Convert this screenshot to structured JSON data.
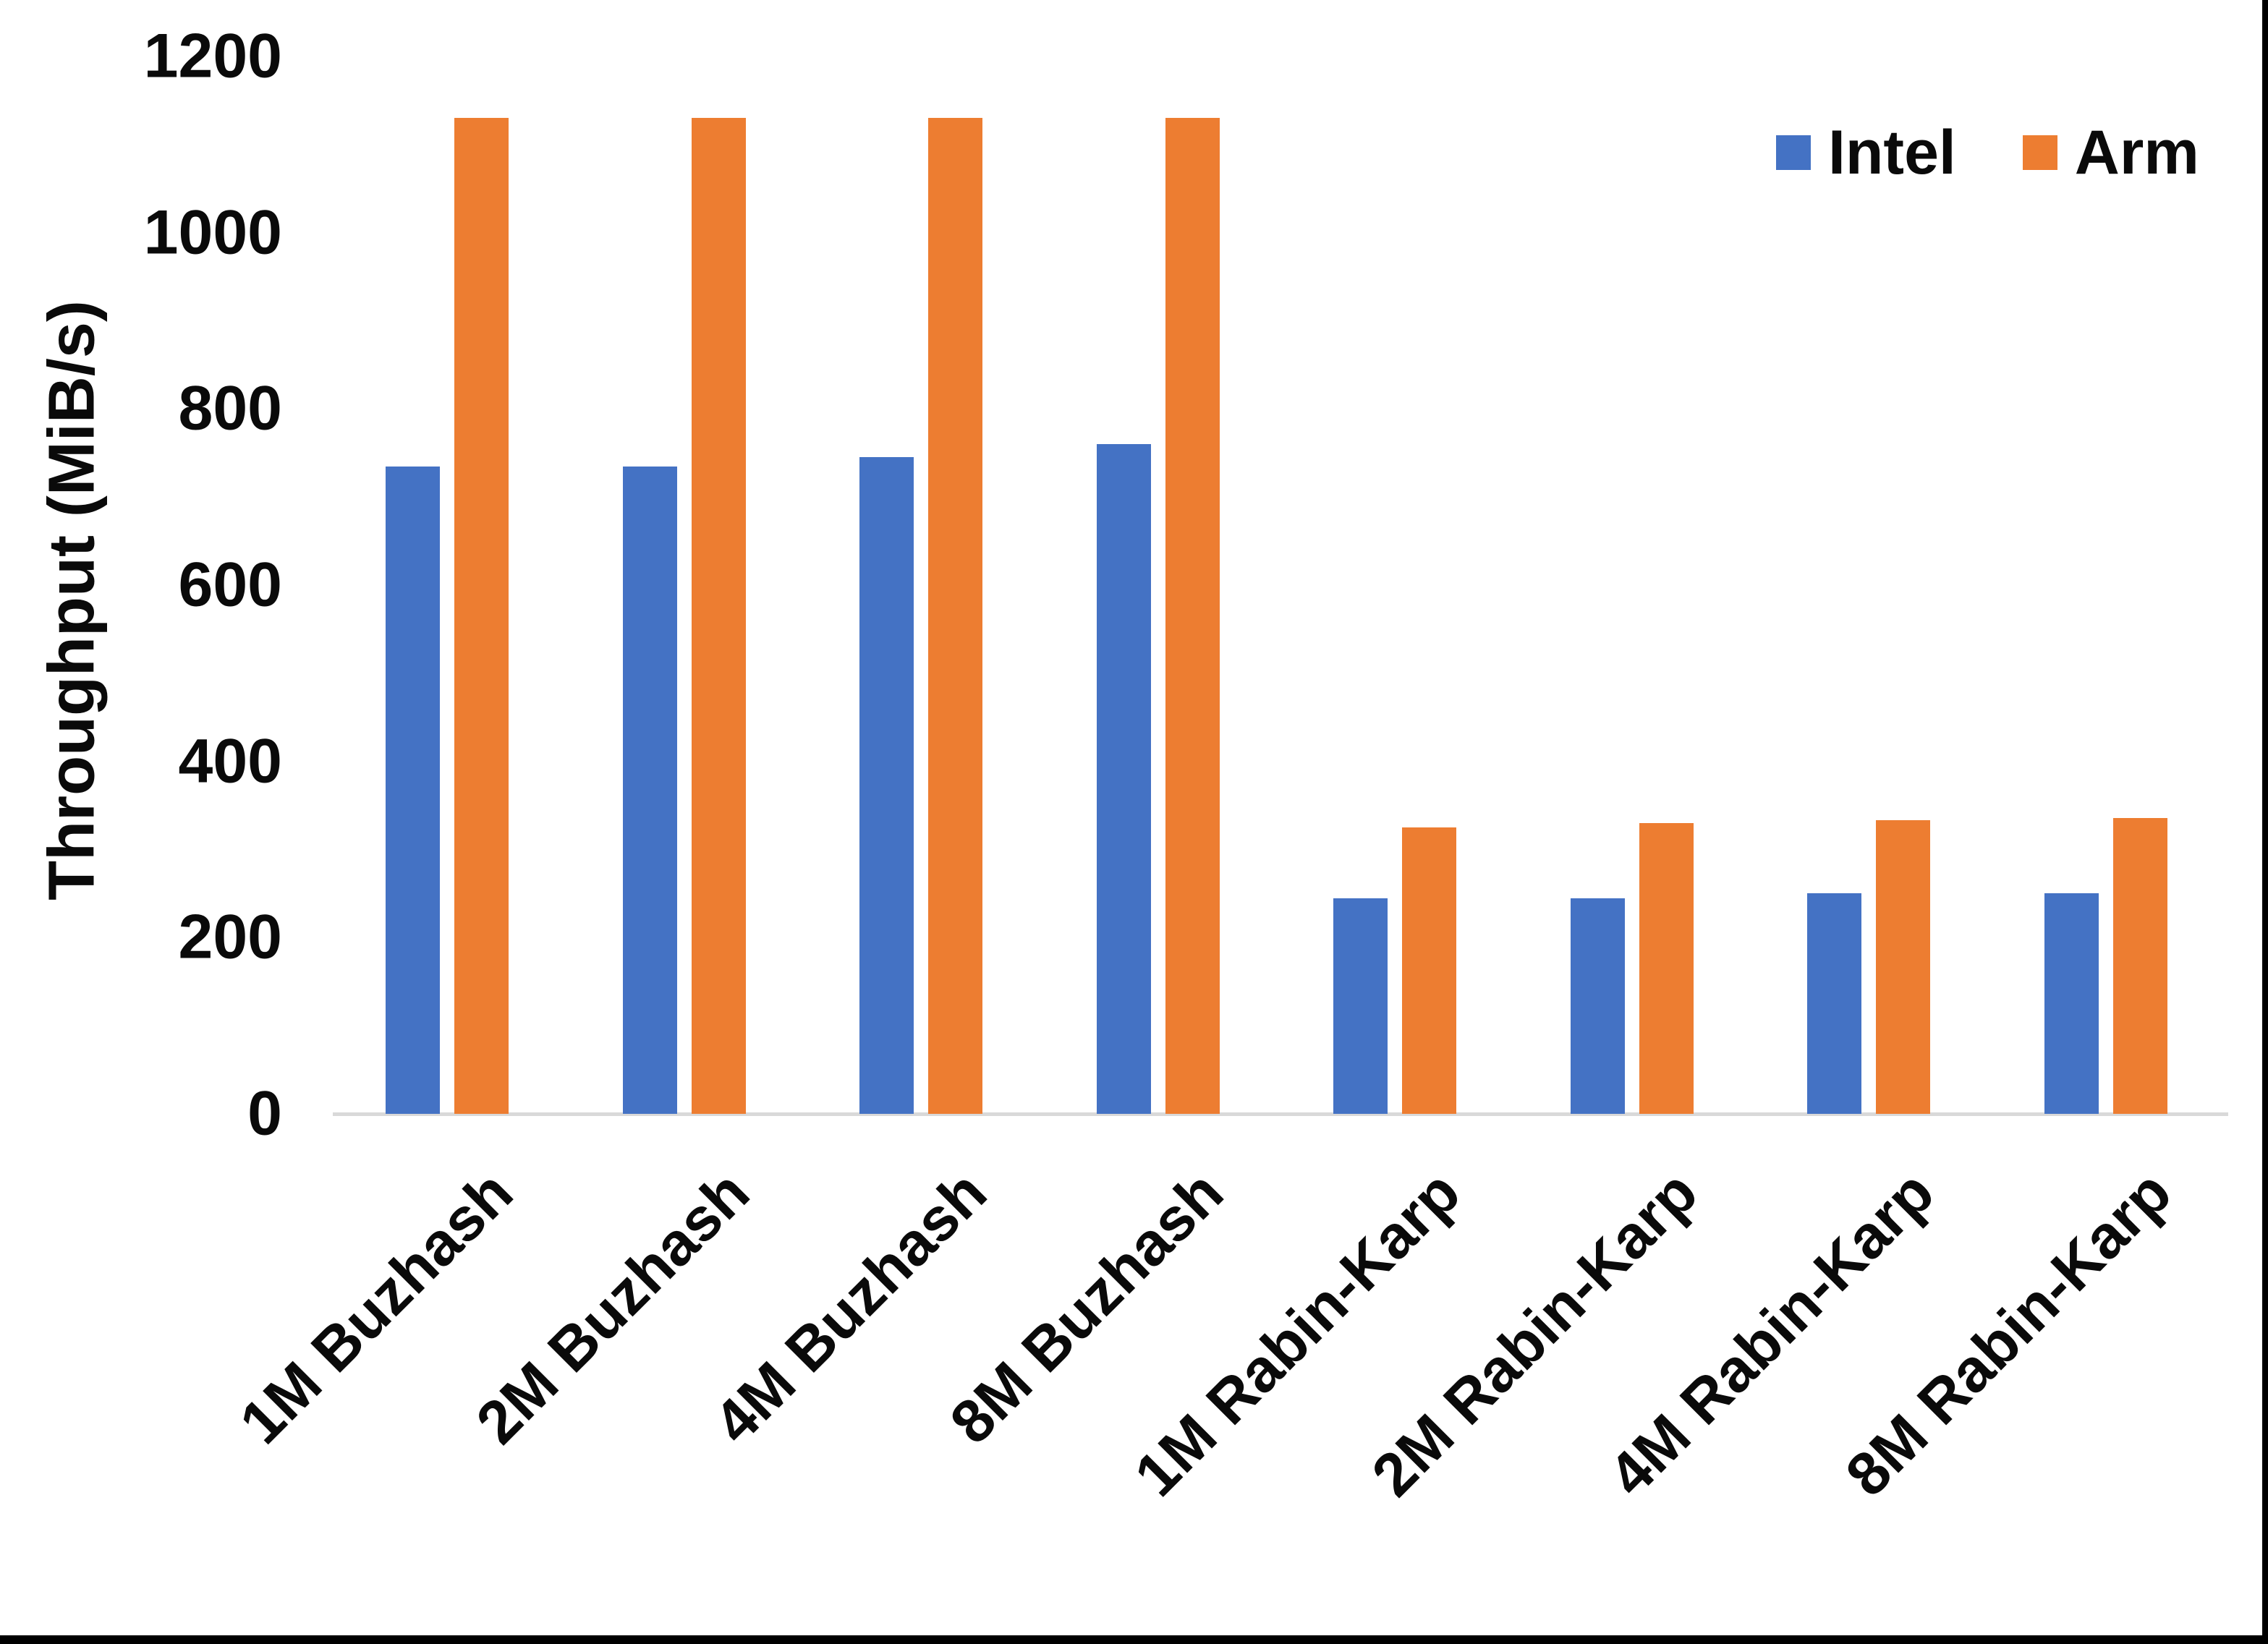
{
  "figure": {
    "background": "#FFFFFF",
    "bottom_border_color": "#000000",
    "right_border_color": "#000000"
  },
  "legend": {
    "items": [
      {
        "label": "Intel",
        "color": "#4472C4"
      },
      {
        "label": "Arm",
        "color": "#ED7D31"
      }
    ]
  },
  "chart_data": {
    "type": "bar",
    "title": "",
    "xlabel": "",
    "ylabel": "Throughput (MiB/s)",
    "categories": [
      "1M Buzhash",
      "2M Buzhash",
      "4M Buzhash",
      "8M Buzhash",
      "1M Rabin-Karp",
      "2M Rabin-Karp",
      "4M Rabin-Karp",
      "8M Rabin-Karp"
    ],
    "series": [
      {
        "name": "Intel",
        "color": "#4472C4",
        "values": [
          735,
          735,
          745,
          760,
          245,
          245,
          250,
          250
        ]
      },
      {
        "name": "Arm",
        "color": "#ED7D31",
        "values": [
          1130,
          1130,
          1130,
          1130,
          325,
          330,
          333,
          336
        ]
      }
    ],
    "ylim": [
      0,
      1200
    ],
    "yticks": [
      0,
      200,
      400,
      600,
      800,
      1000,
      1200
    ],
    "grid": "off",
    "legend_position": "top-right",
    "axis_line_color": "#D9D9D9"
  }
}
